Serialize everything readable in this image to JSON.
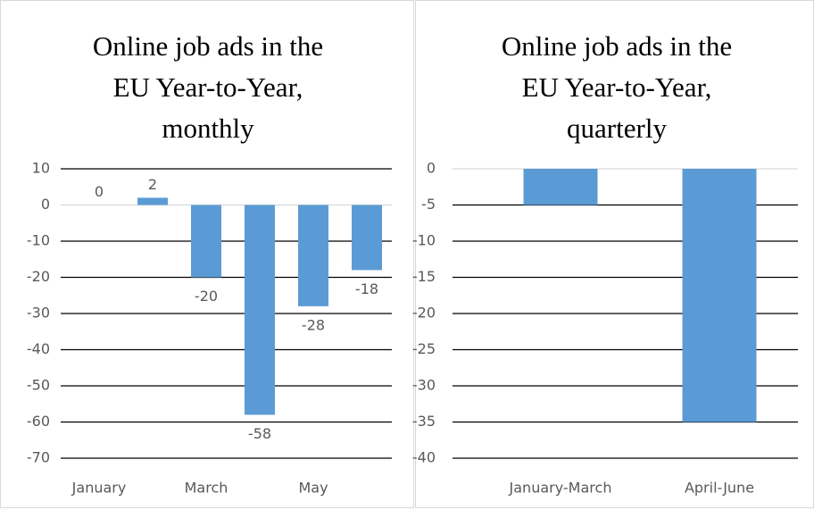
{
  "chart_data": [
    {
      "type": "bar",
      "title": "Online job ads in the EU Year-to-Year, monthly",
      "categories": [
        "January",
        null,
        "March",
        null,
        "May",
        null
      ],
      "values": [
        0,
        2,
        -20,
        -58,
        -28,
        -18
      ],
      "color": "#5b9bd5",
      "data_labels": true,
      "ylim": [
        -70,
        10
      ],
      "yticks": [
        10,
        0,
        -10,
        -20,
        -30,
        -40,
        -50,
        -60,
        -70
      ],
      "grid": true
    },
    {
      "type": "bar",
      "title": "Online job ads in the EU Year-to-Year, quarterly",
      "categories": [
        "January-March",
        "April-June"
      ],
      "values": [
        -5,
        -35
      ],
      "color": "#5b9bd5",
      "data_labels": false,
      "ylim": [
        -40,
        0
      ],
      "yticks": [
        0,
        -5,
        -10,
        -15,
        -20,
        -25,
        -30,
        -35,
        -40
      ],
      "grid": true
    }
  ]
}
